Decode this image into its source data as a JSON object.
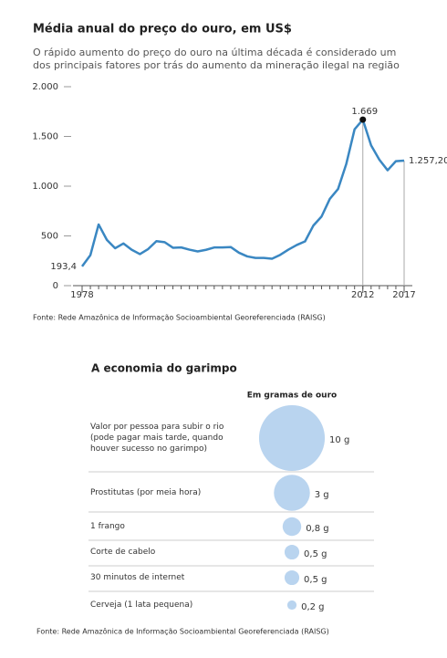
{
  "chart_data": [
    {
      "type": "line",
      "title": "Média anual do preço do ouro, em US$",
      "subtitle": "O rápido aumento do preço do ouro na última década é considerado um dos principais fatores por trás do aumento da mineração ilegal na região",
      "x": [
        1978,
        1979,
        1980,
        1981,
        1982,
        1983,
        1984,
        1985,
        1986,
        1987,
        1988,
        1989,
        1990,
        1991,
        1992,
        1993,
        1994,
        1995,
        1996,
        1997,
        1998,
        1999,
        2000,
        2001,
        2002,
        2003,
        2004,
        2005,
        2006,
        2007,
        2008,
        2009,
        2010,
        2011,
        2012,
        2013,
        2014,
        2015,
        2016,
        2017
      ],
      "values": [
        193.4,
        306,
        615,
        460,
        376,
        424,
        361,
        317,
        368,
        447,
        437,
        381,
        384,
        362,
        344,
        360,
        384,
        384,
        388,
        331,
        294,
        279,
        279,
        271,
        310,
        363,
        409,
        445,
        603,
        695,
        872,
        972,
        1225,
        1572,
        1669,
        1411,
        1266,
        1160,
        1251,
        1257.2
      ],
      "value_labels": [
        "193,4",
        null,
        null,
        null,
        null,
        null,
        null,
        null,
        null,
        null,
        null,
        null,
        null,
        null,
        null,
        null,
        null,
        null,
        null,
        null,
        null,
        null,
        null,
        null,
        null,
        null,
        null,
        null,
        null,
        null,
        null,
        null,
        null,
        null,
        "1.669",
        null,
        null,
        null,
        null,
        "1.257,20"
      ],
      "color": "#3a87c2",
      "xlim": [
        1978,
        2017
      ],
      "xticks": [
        1978,
        2012,
        2017
      ],
      "ylim": [
        0,
        2000
      ],
      "yticks": [
        0,
        500,
        {
          "value": 1000,
          "label": "1.000"
        },
        {
          "value": 1500,
          "label": "1.500"
        },
        {
          "value": 2000,
          "label": "2.000"
        }
      ],
      "source": "Fonte: Rede Amazônica de Informação Socioambiental Georeferenciada (RAISG)"
    },
    {
      "type": "bubble",
      "title": "A economia do garimpo",
      "column_header": "Em gramas de ouro",
      "categories": [
        "Valor por pessoa para subir o rio (pode pagar mais tarde, quando houver sucesso no garimpo)",
        "Prostitutas (por meia hora)",
        "1 frango",
        "Corte de cabelo",
        "30 minutos de internet",
        "Cerveja (1 lata pequena)"
      ],
      "values": [
        10,
        3,
        0.8,
        0.5,
        0.5,
        0.2
      ],
      "value_labels": [
        "10 g",
        "3 g",
        "0,8 g",
        "0,5 g",
        "0,5 g",
        "0,2 g"
      ],
      "color": "#b9d4ef",
      "source": "Fonte: Rede Amazônica de Informação Socioambiental Georeferenciada (RAISG)"
    }
  ]
}
